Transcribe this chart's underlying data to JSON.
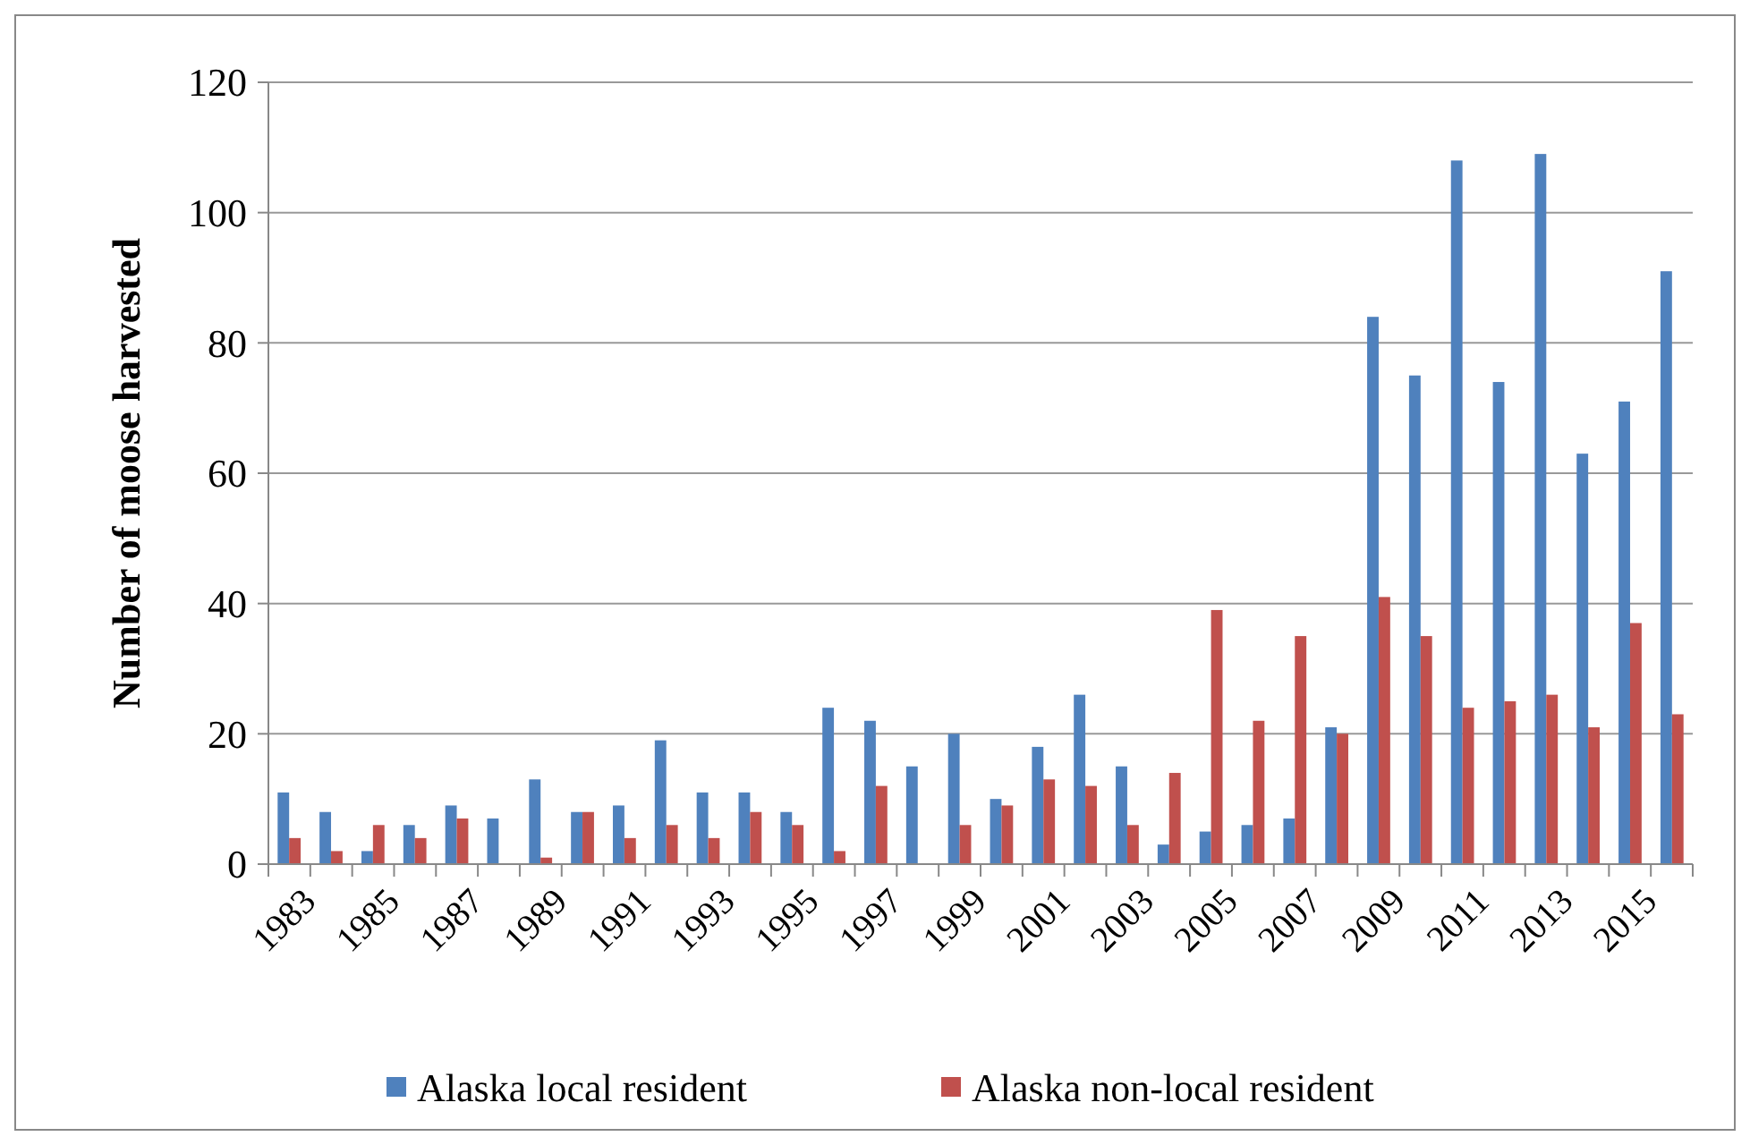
{
  "chart_data": {
    "type": "bar",
    "ylabel": "Number of moose harvested",
    "categories": [
      "1983",
      null,
      "1985",
      null,
      "1987",
      null,
      "1989",
      null,
      "1991",
      null,
      "1993",
      null,
      "1995",
      null,
      "1997",
      null,
      "1999",
      null,
      "2001",
      null,
      "2003",
      null,
      "2005",
      null,
      "2007",
      null,
      "2009",
      null,
      "2011",
      null,
      "2013",
      null,
      "2015",
      null
    ],
    "series": [
      {
        "name": "Alaska local resident",
        "color": "#4f81bd",
        "values": [
          11,
          8,
          2,
          6,
          9,
          7,
          13,
          8,
          9,
          19,
          11,
          11,
          8,
          24,
          22,
          15,
          20,
          10,
          18,
          26,
          15,
          3,
          5,
          6,
          7,
          21,
          84,
          75,
          108,
          74,
          109,
          63,
          71,
          91
        ]
      },
      {
        "name": "Alaska non-local resident",
        "color": "#c0504d",
        "values": [
          4,
          2,
          6,
          4,
          7,
          0,
          1,
          8,
          4,
          6,
          4,
          8,
          6,
          2,
          12,
          0,
          6,
          9,
          13,
          12,
          6,
          14,
          39,
          22,
          35,
          20,
          41,
          35,
          24,
          25,
          26,
          21,
          37,
          23
        ]
      }
    ],
    "ylim": [
      0,
      120
    ],
    "yticks": [
      0,
      20,
      40,
      60,
      80,
      100,
      120
    ],
    "grid": "y",
    "legend": "bottom"
  }
}
